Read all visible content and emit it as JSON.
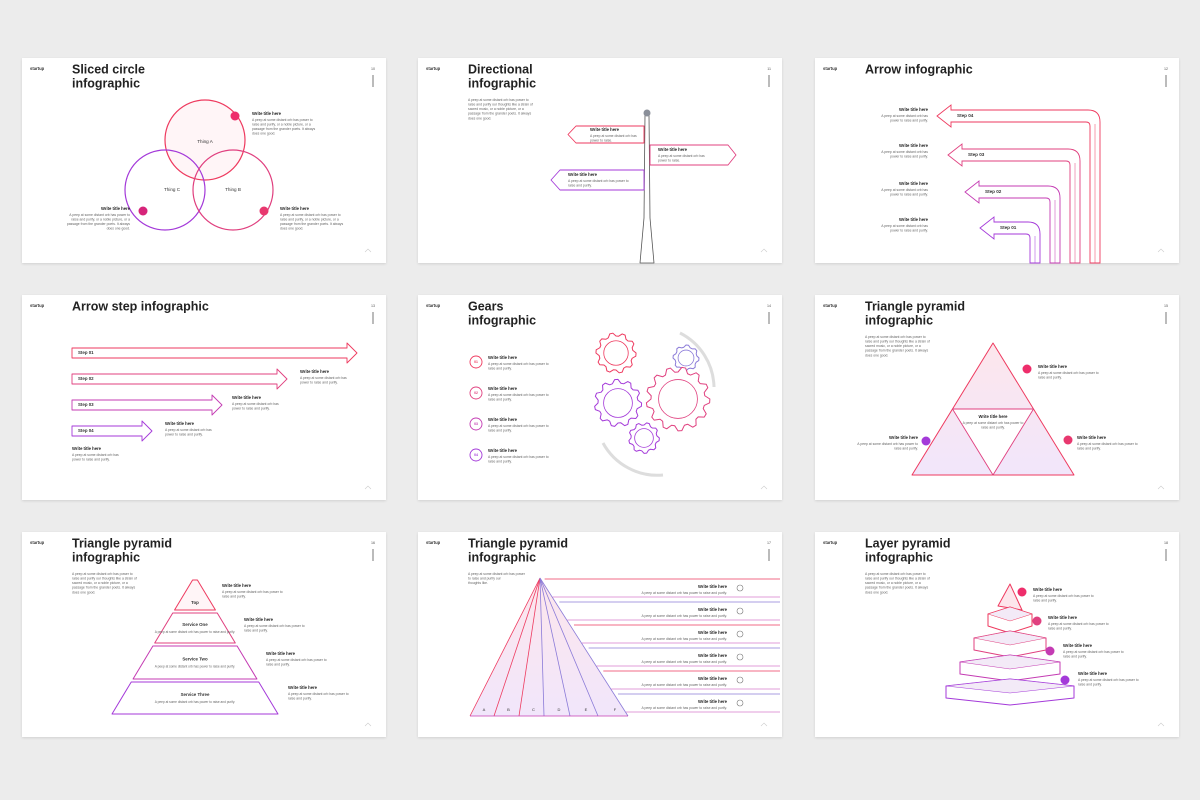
{
  "slides": [
    {
      "brand": "startup",
      "number": "10",
      "title": [
        "Sliced circle",
        "infographic"
      ],
      "shapes": [
        "Thing A",
        "Thing C",
        "Thing B"
      ],
      "items": [
        {
          "heading": "Write title here",
          "body": [
            "A peep at some distant orb has power to",
            "raise and purify, or a noble picture, or a",
            "passage from the grander poets. It always",
            "does one good."
          ]
        },
        {
          "heading": "Write title here",
          "body": [
            "A peep at some distant orb has power to",
            "raise and purify, or a noble picture, or a",
            "passage from the grander poets. It always",
            "does one good."
          ]
        },
        {
          "heading": "Write title here",
          "body": [
            "A peep at some distant orb has power to",
            "raise and purify, or a noble picture, or a",
            "passage from the grander poets. It always",
            "does one good."
          ]
        }
      ]
    },
    {
      "brand": "startup",
      "number": "11",
      "title": [
        "Directional",
        "infographic"
      ],
      "intro": [
        "A peep at some distant orb has power to",
        "raise and purify our thoughts like a strain of",
        "sacred music, or a noble picture, or a",
        "passage from the grander poets. It always",
        "does one good."
      ],
      "items": [
        {
          "heading": "Write title here",
          "body": [
            "A peep at some distant orb has",
            "power to raise."
          ]
        },
        {
          "heading": "Write title here",
          "body": [
            "A peep at some distant orb has",
            "power to raise."
          ]
        },
        {
          "heading": "Write title here",
          "body": [
            "A peep at some distant orb has power to",
            "raise and purify."
          ]
        }
      ]
    },
    {
      "brand": "startup",
      "number": "12",
      "title": [
        "Arrow infographic"
      ],
      "shapes": [
        "Step 04",
        "Step 03",
        "Step 02",
        "Step 01"
      ],
      "items": [
        {
          "heading": "Write title here",
          "body": [
            "A peep at some distant orb has",
            "power to raise and purify."
          ]
        },
        {
          "heading": "Write title here",
          "body": [
            "A peep at some distant orb has",
            "power to raise and purify."
          ]
        },
        {
          "heading": "Write title here",
          "body": [
            "A peep at some distant orb has",
            "power to raise and purify."
          ]
        },
        {
          "heading": "Write title here",
          "body": [
            "A peep at some distant orb has",
            "power to raise and purify."
          ]
        }
      ]
    },
    {
      "brand": "startup",
      "number": "13",
      "title": [
        "Arrow step infographic"
      ],
      "shapes": [
        "Step 01",
        "Step 02",
        "Step 03",
        "Step 04"
      ],
      "items": [
        {
          "heading": "Write title here",
          "body": [
            "A peep at some distant orb has",
            "power to raise and purify."
          ]
        },
        {
          "heading": "Write title here",
          "body": [
            "A peep at some distant orb has",
            "power to raise and purify."
          ]
        },
        {
          "heading": "Write title here",
          "body": [
            "A peep at some distant orb has",
            "power to raise and purify."
          ]
        },
        {
          "heading": "Write title here",
          "body": [
            "A peep at some distant orb has",
            "power to raise and purify."
          ]
        }
      ]
    },
    {
      "brand": "startup",
      "number": "14",
      "title": [
        "Gears",
        "infographic"
      ],
      "shapes": [
        "01",
        "02",
        "03",
        "04"
      ],
      "items": [
        {
          "heading": "Write title here",
          "body": [
            "A peep at some distant orb has power to",
            "raise and purify."
          ]
        },
        {
          "heading": "Write title here",
          "body": [
            "A peep at some distant orb has power to",
            "raise and purify."
          ]
        },
        {
          "heading": "Write title here",
          "body": [
            "A peep at some distant orb has power to",
            "raise and purify."
          ]
        },
        {
          "heading": "Write title here",
          "body": [
            "A peep at some distant orb has power to",
            "raise and purify."
          ]
        }
      ]
    },
    {
      "brand": "startup",
      "number": "15",
      "title": [
        "Triangle pyramid",
        "infographic"
      ],
      "intro": [
        "A peep at some distant orb has power to",
        "raise and purify our thoughts like a strain of",
        "sacred music, or a noble picture, or a",
        "passage from the grander poets. It always",
        "does one good."
      ],
      "items": [
        {
          "heading": "Write title here",
          "body": [
            "A peep at some distant orb has power to",
            "raise and purify."
          ]
        },
        {
          "heading": "Write title here",
          "body": [
            "A peep at some distant orb has power to",
            "raise and purify."
          ]
        },
        {
          "heading": "Write title here",
          "body": [
            "A peep at some distant orb has power to",
            "raise and purify."
          ]
        },
        {
          "heading": "Write title here",
          "body": [
            "A peep at some distant orb has power to",
            "raise and purify."
          ]
        }
      ]
    },
    {
      "brand": "startup",
      "number": "16",
      "title": [
        "Triangle pyramid",
        "infographic"
      ],
      "intro": [
        "A peep at some distant orb has power to",
        "raise and purify our thoughts like a strain of",
        "sacred music, or a noble picture, or a",
        "passage from the grander poets. It always",
        "does one good."
      ],
      "layers": [
        {
          "label": "Top"
        },
        {
          "label": "Service One",
          "body": "A peep at some distant orb has power to raise and purify."
        },
        {
          "label": "Service Two",
          "body": "A peep at some distant orb has power to raise and purify."
        },
        {
          "label": "Service Three",
          "body": "A peep at some distant orb has power to raise and purify."
        }
      ],
      "items": [
        {
          "heading": "Write title here",
          "body": [
            "A peep at some distant orb has power to",
            "raise and purify."
          ]
        },
        {
          "heading": "Write title here",
          "body": [
            "A peep at some distant orb has power to",
            "raise and purify."
          ]
        },
        {
          "heading": "Write title here",
          "body": [
            "A peep at some distant orb has power to",
            "raise and purify."
          ]
        },
        {
          "heading": "Write title here",
          "body": [
            "A peep at some distant orb has power to",
            "raise and purify."
          ]
        }
      ]
    },
    {
      "brand": "startup",
      "number": "17",
      "title": [
        "Triangle pyramid",
        "infographic"
      ],
      "intro": [
        "A peep at some distant orb has power",
        "to raise and purify our",
        "thoughts like."
      ],
      "shapes": [
        "A",
        "B",
        "C",
        "D",
        "E",
        "F"
      ],
      "items": [
        {
          "heading": "Write title here",
          "body": [
            "A peep at some distant orb has power to raise and purify."
          ]
        },
        {
          "heading": "Write title here",
          "body": [
            "A peep at some distant orb has power to raise and purify."
          ]
        },
        {
          "heading": "Write title here",
          "body": [
            "A peep at some distant orb has power to raise and purify."
          ]
        },
        {
          "heading": "Write title here",
          "body": [
            "A peep at some distant orb has power to raise and purify."
          ]
        },
        {
          "heading": "Write title here",
          "body": [
            "A peep at some distant orb has power to raise and purify."
          ]
        },
        {
          "heading": "Write title here",
          "body": [
            "A peep at some distant orb has power to raise and purify."
          ]
        }
      ]
    },
    {
      "brand": "startup",
      "number": "18",
      "title": [
        "Layer pyramid",
        "infographic"
      ],
      "intro": [
        "A peep at some distant orb has power to",
        "raise and purify our thoughts like a strain of",
        "sacred music, or a noble picture, or a",
        "passage from the grander poets. It always",
        "does one good."
      ],
      "items": [
        {
          "heading": "Write title here",
          "body": [
            "A peep at some distant orb has power to",
            "raise and purify."
          ]
        },
        {
          "heading": "Write title here",
          "body": [
            "A peep at some distant orb has power to",
            "raise and purify."
          ]
        },
        {
          "heading": "Write title here",
          "body": [
            "A peep at some distant orb has power to",
            "raise and purify."
          ]
        },
        {
          "heading": "Write title here",
          "body": [
            "A peep at some distant orb has power to",
            "raise and purify."
          ]
        }
      ]
    }
  ]
}
